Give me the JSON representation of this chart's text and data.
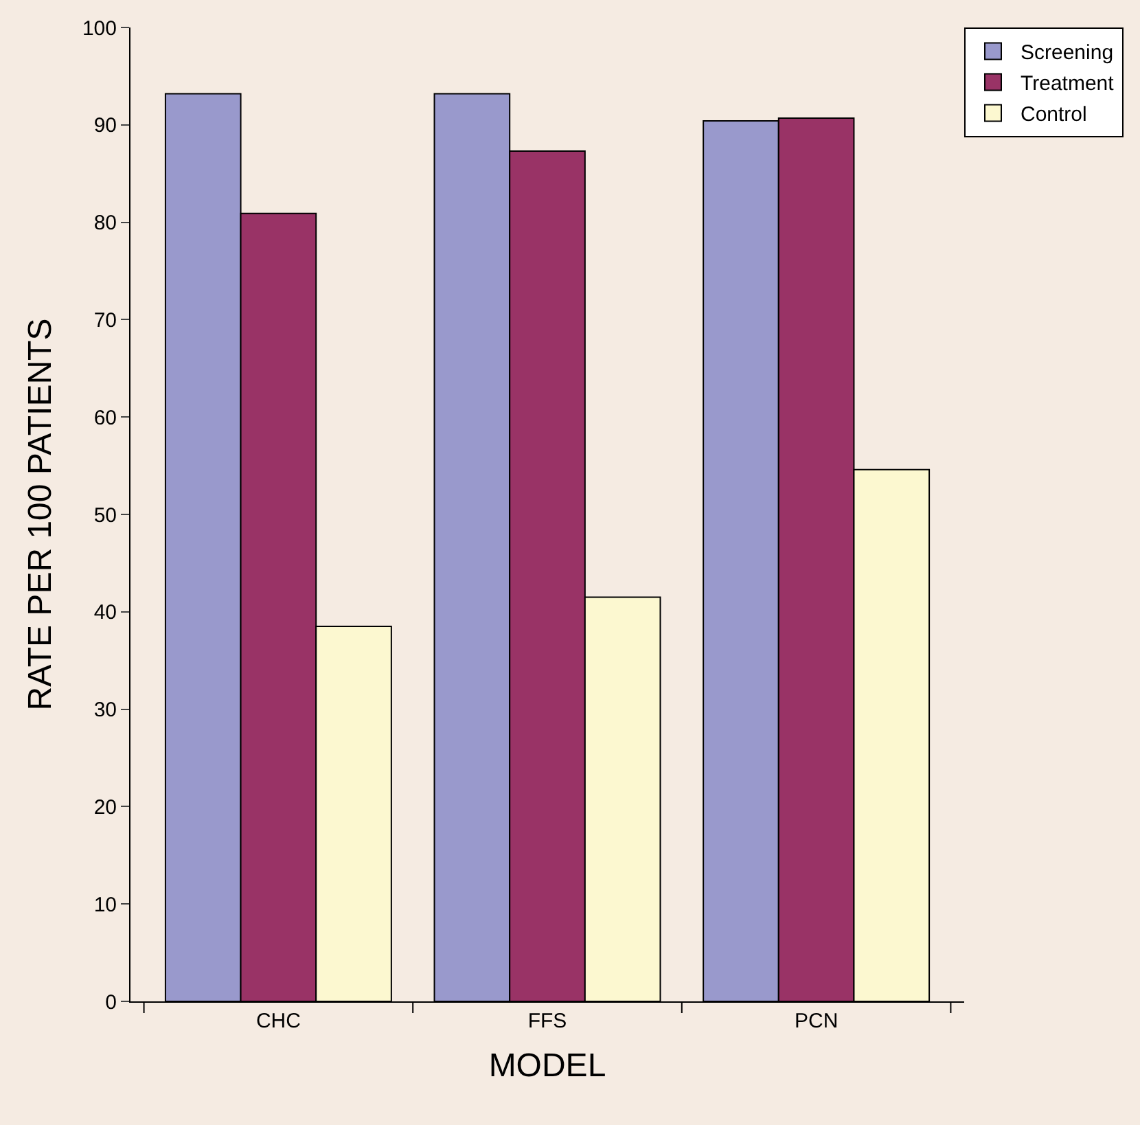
{
  "chart_data": {
    "type": "bar",
    "xlabel": "MODEL",
    "ylabel": "RATE PER 100 PATIENTS",
    "categories": [
      "CHC",
      "FFS",
      "PCN"
    ],
    "series": [
      {
        "name": "Screening",
        "color": "#9999cc",
        "values": [
          93.2,
          93.2,
          90.4
        ]
      },
      {
        "name": "Treatment",
        "color": "#993366",
        "values": [
          80.9,
          87.3,
          90.7
        ]
      },
      {
        "name": "Control",
        "color": "#fcf8d0",
        "values": [
          38.5,
          41.5,
          54.6
        ]
      }
    ],
    "ylim": [
      0,
      100
    ],
    "yticks": [
      0,
      10,
      20,
      30,
      40,
      50,
      60,
      70,
      80,
      90,
      100
    ],
    "grid": false,
    "legend": "top right"
  }
}
